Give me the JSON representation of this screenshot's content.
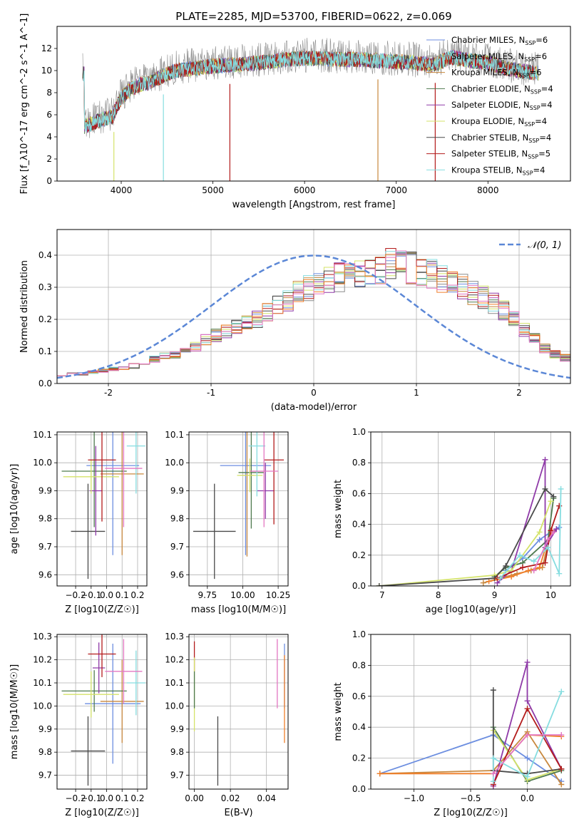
{
  "figure_title": "PLATE=2285, MJD=53700, FIBERID=0622, z=0.069",
  "model_colors": [
    "#6c8ee0",
    "#8c8c8c",
    "#c8883e",
    "#4f7a4f",
    "#8f3aa8",
    "#d4e36a",
    "#4a4a4a",
    "#b31b1b",
    "#86dde0"
  ],
  "extra_colors": {
    "orange": "#f07f2a",
    "pink": "#e377c2",
    "gold": "#c8b400"
  },
  "chart_data": [
    {
      "panel": "spectrum",
      "type": "line",
      "title": "PLATE=2285, MJD=53700, FIBERID=0622, z=0.069",
      "xlabel": "wavelength [Angstrom, rest frame]",
      "ylabel": "Flux [f_λ10^-17 erg cm^-2 s^-1 A^-1]",
      "xlim": [
        3300,
        8900
      ],
      "ylim": [
        0,
        14
      ],
      "xticks": [
        4000,
        5000,
        6000,
        7000,
        8000
      ],
      "yticks": [
        0,
        2,
        4,
        6,
        8,
        10,
        12
      ],
      "legend_position": "top-right",
      "legend": [
        "Chabrier MILES, N_SSP=6",
        "Salpeter MILES, N_SSP=6",
        "Kroupa MILES, N_SSP=6",
        "Chabrier ELODIE, N_SSP=4",
        "Salpeter ELODIE, N_SSP=4",
        "Kroupa ELODIE, N_SSP=4",
        "Chabrier STELIB, N_SSP=4",
        "Salpeter STELIB, N_SSP=5",
        "Kroupa STELIB, N_SSP=4"
      ],
      "continuum": {
        "x": [
          3600,
          3700,
          3800,
          3900,
          4000,
          4100,
          4200,
          4300,
          4400,
          4500,
          4600,
          4800,
          5000,
          5200,
          5400,
          5600,
          5800,
          6000,
          6200,
          6400,
          6600,
          6800,
          7000,
          7200,
          7400,
          7600,
          7800,
          8000,
          8200,
          8400,
          8600
        ],
        "y": [
          5.2,
          5.6,
          5.9,
          6.1,
          7.8,
          8.6,
          9.0,
          9.2,
          9.6,
          10.0,
          10.3,
          10.5,
          10.7,
          10.8,
          10.9,
          11.1,
          11.3,
          11.4,
          11.4,
          11.3,
          11.3,
          11.2,
          11.1,
          11.0,
          10.8,
          11.5,
          11.2,
          11.0,
          10.5,
          10.2,
          10.0
        ]
      }
    },
    {
      "panel": "residuals",
      "type": "line",
      "xlabel": "(data-model)/error",
      "ylabel": "Normed distribution",
      "xlim": [
        -2.5,
        2.5
      ],
      "ylim": [
        0,
        0.48
      ],
      "xticks": [
        -2,
        -1,
        0,
        1,
        2
      ],
      "yticks": [
        0.0,
        0.1,
        0.2,
        0.3,
        0.4
      ],
      "legend": [
        "𝒩(0, 1)"
      ],
      "legend_position": "top-right",
      "bin_width": 0.1,
      "histogram_base": [
        0.028,
        0.03,
        0.03,
        0.035,
        0.04,
        0.045,
        0.05,
        0.055,
        0.065,
        0.075,
        0.085,
        0.09,
        0.1,
        0.115,
        0.135,
        0.15,
        0.165,
        0.18,
        0.19,
        0.2,
        0.22,
        0.24,
        0.26,
        0.28,
        0.3,
        0.31,
        0.32,
        0.33,
        0.34,
        0.345,
        0.35,
        0.36,
        0.37,
        0.37,
        0.36,
        0.35,
        0.34,
        0.325,
        0.31,
        0.3,
        0.285,
        0.27,
        0.25,
        0.23,
        0.2,
        0.17,
        0.14,
        0.11,
        0.09,
        0.08
      ]
    },
    {
      "panel": "age-vs-Z",
      "type": "scatter",
      "xlabel": "Z [log10(Z/Z☉)]",
      "ylabel": "age  [log10(age/yr)]",
      "xlim": [
        -0.32,
        0.26
      ],
      "ylim": [
        9.56,
        10.11
      ],
      "xticks": [
        -0.2,
        -0.1,
        0.0,
        0.1,
        0.2
      ],
      "xticklabels": [
        "−0.2",
        "−0.1",
        "0.0",
        "0.1",
        "0.2"
      ],
      "yticks": [
        9.6,
        9.7,
        9.8,
        9.9,
        10.0,
        10.1
      ],
      "points": [
        {
          "x": -0.12,
          "y": 9.755,
          "xerr": 0.11,
          "yerr": 0.17,
          "c": 6
        },
        {
          "x": 0.04,
          "y": 9.99,
          "xerr": 0.17,
          "yerr": 0.32,
          "c": 0
        },
        {
          "x": 0.1,
          "y": 9.96,
          "xerr": 0.14,
          "yerr": 0.29,
          "c": 2
        },
        {
          "x": -0.08,
          "y": 9.97,
          "xerr": 0.21,
          "yerr": 0.2,
          "c": 3
        },
        {
          "x": -0.07,
          "y": 9.9,
          "xerr": 0.04,
          "yerr": 0.16,
          "c": 4
        },
        {
          "x": -0.1,
          "y": 9.95,
          "xerr": 0.18,
          "yerr": 0.06,
          "c": 5
        },
        {
          "x": -0.03,
          "y": 10.01,
          "xerr": 0.09,
          "yerr": 0.22,
          "c": 7
        },
        {
          "x": 0.19,
          "y": 10.06,
          "xerr": 0.06,
          "yerr": 0.17,
          "c": 8
        },
        {
          "x": 0.11,
          "y": 9.98,
          "xerr": 0.12,
          "yerr": 0.21,
          "c": "pink"
        }
      ]
    },
    {
      "panel": "age-vs-mass",
      "type": "scatter",
      "xlabel": "mass [log10(M/M☉)]",
      "xlim": [
        9.62,
        10.32
      ],
      "ylim": [
        9.56,
        10.11
      ],
      "xticks": [
        9.75,
        10.0,
        10.25
      ],
      "xticklabels": [
        "9.75",
        "10.00",
        "10.25"
      ],
      "yticks": [
        9.6,
        9.7,
        9.8,
        9.9,
        10.0,
        10.1
      ],
      "points": [
        {
          "x": 9.8,
          "y": 9.755,
          "xerr": 0.15,
          "yerr": 0.17,
          "c": 6
        },
        {
          "x": 10.02,
          "y": 9.99,
          "xerr": 0.18,
          "yerr": 0.32,
          "c": 0
        },
        {
          "x": 10.03,
          "y": 9.955,
          "xerr": 0.05,
          "yerr": 0.29,
          "c": 2
        },
        {
          "x": 10.06,
          "y": 9.965,
          "xerr": 0.09,
          "yerr": 0.2,
          "c": 3
        },
        {
          "x": 10.16,
          "y": 9.9,
          "xerr": 0.06,
          "yerr": 0.1,
          "c": 4
        },
        {
          "x": 10.05,
          "y": 9.955,
          "xerr": 0.09,
          "yerr": 0.06,
          "c": 5
        },
        {
          "x": 10.22,
          "y": 10.01,
          "xerr": 0.07,
          "yerr": 0.23,
          "c": 7
        },
        {
          "x": 10.1,
          "y": 10.06,
          "xerr": 0.06,
          "yerr": 0.18,
          "c": 8
        },
        {
          "x": 10.15,
          "y": 9.97,
          "xerr": 0.1,
          "yerr": 0.2,
          "c": "pink"
        }
      ]
    },
    {
      "panel": "weight-vs-age",
      "type": "line",
      "xlabel": "age  [log10(age/yr)]",
      "ylabel": "mass weight",
      "xlim": [
        6.8,
        10.35
      ],
      "ylim": [
        0,
        1.0
      ],
      "xticks": [
        7,
        8,
        9,
        10
      ],
      "yticks": [
        0.0,
        0.2,
        0.4,
        0.6,
        0.8,
        1.0
      ],
      "series": [
        {
          "c": 0,
          "x": [
            9.2,
            9.5,
            9.8,
            10.0,
            10.15
          ],
          "y": [
            0.1,
            0.18,
            0.3,
            0.35,
            0.38
          ]
        },
        {
          "c": 2,
          "x": [
            8.8,
            9.1,
            9.4,
            9.65,
            9.85,
            10.0
          ],
          "y": [
            0.02,
            0.05,
            0.08,
            0.1,
            0.12,
            0.35
          ]
        },
        {
          "c": "orange",
          "x": [
            8.9,
            9.3,
            9.6,
            9.8,
            9.95,
            10.02
          ],
          "y": [
            0.03,
            0.06,
            0.1,
            0.12,
            0.3,
            0.36
          ]
        },
        {
          "c": 3,
          "x": [
            9.0,
            9.2,
            9.5,
            9.95,
            10.05
          ],
          "y": [
            0.06,
            0.12,
            0.15,
            0.3,
            0.57
          ]
        },
        {
          "c": 4,
          "x": [
            9.05,
            9.3,
            9.9,
            9.9,
            10.1
          ],
          "y": [
            0.02,
            0.1,
            0.82,
            0.25,
            0.37
          ]
        },
        {
          "c": 5,
          "x": [
            6.95,
            9.0,
            9.3,
            9.8,
            10.0
          ],
          "y": [
            0.0,
            0.07,
            0.1,
            0.35,
            0.55
          ]
        },
        {
          "c": 6,
          "x": [
            6.95,
            9.0,
            9.2,
            9.9,
            10.05
          ],
          "y": [
            0.0,
            0.05,
            0.13,
            0.63,
            0.58
          ]
        },
        {
          "c": 7,
          "x": [
            9.05,
            9.5,
            9.9,
            10.0,
            10.15
          ],
          "y": [
            0.05,
            0.12,
            0.15,
            0.36,
            0.52
          ]
        },
        {
          "c": 8,
          "x": [
            9.1,
            9.45,
            9.7,
            9.95,
            10.15,
            10.18
          ],
          "y": [
            0.05,
            0.2,
            0.16,
            0.25,
            0.08,
            0.63
          ]
        },
        {
          "c": "pink",
          "x": [
            9.7,
            9.95,
            10.05
          ],
          "y": [
            0.1,
            0.3,
            0.35
          ]
        }
      ]
    },
    {
      "panel": "mass-vs-Z",
      "type": "scatter",
      "xlabel": "Z [log10(Z/Z☉)]",
      "ylabel": "mass [log10(M/M☉)]",
      "xlim": [
        -0.32,
        0.26
      ],
      "ylim": [
        9.64,
        10.31
      ],
      "xticks": [
        -0.2,
        -0.1,
        0.0,
        0.1,
        0.2
      ],
      "xticklabels": [
        "−0.2",
        "−0.1",
        "0.0",
        "0.1",
        "0.2"
      ],
      "yticks": [
        9.7,
        9.8,
        9.9,
        10.0,
        10.1,
        10.2,
        10.3
      ],
      "points": [
        {
          "x": -0.12,
          "y": 9.805,
          "xerr": 0.11,
          "yerr": 0.15,
          "c": 6
        },
        {
          "x": 0.04,
          "y": 10.01,
          "xerr": 0.18,
          "yerr": 0.26,
          "c": 0
        },
        {
          "x": 0.1,
          "y": 10.02,
          "xerr": 0.14,
          "yerr": 0.18,
          "c": 2
        },
        {
          "x": -0.08,
          "y": 10.065,
          "xerr": 0.21,
          "yerr": 0.09,
          "c": 3
        },
        {
          "x": -0.05,
          "y": 10.165,
          "xerr": 0.04,
          "yerr": 0.11,
          "c": 4
        },
        {
          "x": -0.1,
          "y": 10.05,
          "xerr": 0.18,
          "yerr": 0.1,
          "c": 5
        },
        {
          "x": -0.03,
          "y": 10.225,
          "xerr": 0.09,
          "yerr": 0.1,
          "c": 7
        },
        {
          "x": 0.19,
          "y": 10.1,
          "xerr": 0.06,
          "yerr": 0.14,
          "c": 8
        },
        {
          "x": 0.11,
          "y": 10.15,
          "xerr": 0.12,
          "yerr": 0.14,
          "c": "pink"
        }
      ]
    },
    {
      "panel": "mass-vs-EBV",
      "type": "scatter",
      "xlabel": "E(B-V)",
      "xlim": [
        -0.003,
        0.052
      ],
      "ylim": [
        9.64,
        10.31
      ],
      "xticks": [
        0.0,
        0.02,
        0.04
      ],
      "xticklabels": [
        "0.00",
        "0.02",
        "0.04"
      ],
      "yticks": [
        9.7,
        9.8,
        9.9,
        10.0,
        10.1,
        10.2,
        10.3
      ],
      "points": [
        {
          "x": 0.0,
          "y": 10.215,
          "xerr": 0,
          "yerr": 0.065,
          "c": 7
        },
        {
          "x": 0.0,
          "y": 10.05,
          "xerr": 0,
          "yerr": 0.16,
          "c": 5
        },
        {
          "x": 0.0,
          "y": 10.07,
          "xerr": 0,
          "yerr": 0.08,
          "c": 3
        },
        {
          "x": 0.013,
          "y": 9.805,
          "xerr": 0,
          "yerr": 0.15,
          "c": 6
        },
        {
          "x": 0.046,
          "y": 10.14,
          "xerr": 0,
          "yerr": 0.15,
          "c": "pink"
        },
        {
          "x": 0.05,
          "y": 10.13,
          "xerr": 0,
          "yerr": 0.14,
          "c": 0
        },
        {
          "x": 0.05,
          "y": 10.03,
          "xerr": 0,
          "yerr": 0.19,
          "c": "orange"
        }
      ]
    },
    {
      "panel": "weight-vs-Z",
      "type": "line",
      "xlabel": "Z [log10(Z/Z☉)]",
      "ylabel": "mass weight",
      "xlim": [
        -1.38,
        0.38
      ],
      "ylim": [
        0,
        1.0
      ],
      "xticks": [
        -1.0,
        -0.5,
        0.0
      ],
      "xticklabels": [
        "−1.0",
        "−0.5",
        "0.0"
      ],
      "yticks": [
        0.0,
        0.2,
        0.4,
        0.6,
        0.8,
        1.0
      ],
      "series": [
        {
          "c": 0,
          "x": [
            -1.3,
            -0.3,
            0.0,
            0.3
          ],
          "y": [
            0.1,
            0.35,
            0.2,
            0.05
          ]
        },
        {
          "c": 2,
          "x": [
            -1.3,
            -0.3,
            0.0,
            0.3
          ],
          "y": [
            0.1,
            0.12,
            0.37,
            0.03
          ]
        },
        {
          "c": "orange",
          "x": [
            -1.3,
            -0.3,
            0.0,
            0.3
          ],
          "y": [
            0.1,
            0.1,
            0.35,
            0.34
          ]
        },
        {
          "c": 3,
          "x": [
            -0.3,
            0.0,
            0.3
          ],
          "y": [
            0.4,
            0.05,
            0.12
          ]
        },
        {
          "c": 4,
          "x": [
            -0.3,
            0.0,
            0.0,
            0.3
          ],
          "y": [
            0.02,
            0.82,
            0.57,
            0.13
          ]
        },
        {
          "c": 5,
          "x": [
            -0.3,
            0.0,
            0.3
          ],
          "y": [
            0.38,
            0.06,
            0.13
          ]
        },
        {
          "c": 6,
          "x": [
            -0.3,
            -0.3,
            0.0,
            0.3
          ],
          "y": [
            0.64,
            0.12,
            0.1,
            0.13
          ]
        },
        {
          "c": 7,
          "x": [
            -0.3,
            0.0,
            0.3
          ],
          "y": [
            0.03,
            0.52,
            0.13
          ]
        },
        {
          "c": 8,
          "x": [
            -0.3,
            -0.3,
            0.0,
            0.3
          ],
          "y": [
            0.05,
            0.2,
            0.08,
            0.63
          ]
        },
        {
          "c": "pink",
          "x": [
            -0.3,
            0.0,
            0.3
          ],
          "y": [
            0.1,
            0.35,
            0.35
          ]
        }
      ]
    }
  ]
}
